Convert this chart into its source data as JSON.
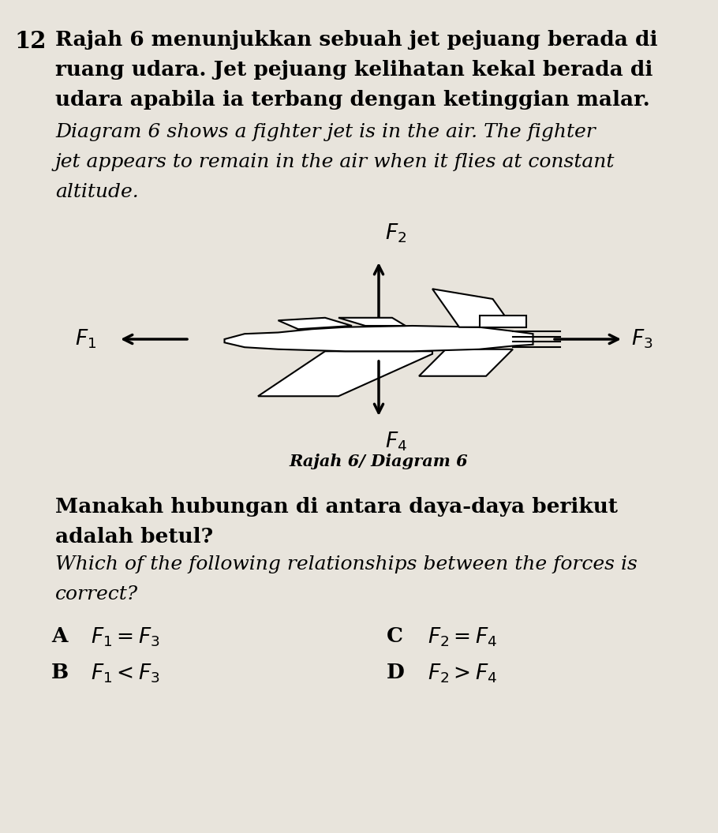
{
  "question_number": "12",
  "bg_color": "#e8e4dc",
  "text_color": "#000000",
  "malay_line1": "Rajah 6 menunjukkan sebuah jet pejuang berada di",
  "malay_line2": "ruang udara. Jet pejuang kelihatan kekal berada di",
  "malay_line3": "udara apabila ia terbang dengan ketinggian malar.",
  "eng_line1": "Diagram 6 shows a fighter jet is in the air. The fighter",
  "eng_line2": "jet appears to remain in the air when it flies at constant",
  "eng_line3": "altitude.",
  "diagram_label": "Rajah 6/ Diagram 6",
  "manakah_line1": "Manakah hubungan di antara daya-daya berikut",
  "manakah_line2": "adalah betul?",
  "which_line1": "Which of the following relationships between the forces is",
  "which_line2": "correct?",
  "opt_A": "A",
  "opt_A_formula": "$F_1=F_3$",
  "opt_B": "B",
  "opt_B_formula": "$F_1<F_3$",
  "opt_C": "C",
  "opt_C_formula": "$F_2=F_4$",
  "opt_D": "D",
  "opt_D_formula": "$F_2>F_4$"
}
